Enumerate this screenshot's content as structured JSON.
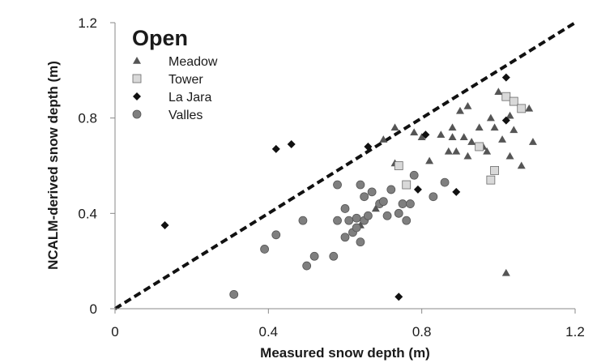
{
  "chart_data": {
    "type": "scatter",
    "title": "Open",
    "xlabel": "Measured snow depth (m)",
    "ylabel": "NCALM-derived snow depth (m)",
    "xlim": [
      0,
      1.2
    ],
    "ylim": [
      0,
      1.2
    ],
    "x_ticks": [
      "0",
      "0.4",
      "0.8",
      "1.2"
    ],
    "y_ticks": [
      "0",
      "0.4",
      "0.8",
      "1.2"
    ],
    "grid": false,
    "legend_position": "top-left",
    "one_to_one_line": true,
    "series": [
      {
        "name": "Meadow",
        "marker": "triangle",
        "color": "#555555",
        "points": [
          [
            0.7,
            0.71
          ],
          [
            0.73,
            0.76
          ],
          [
            0.78,
            0.74
          ],
          [
            0.8,
            0.72
          ],
          [
            0.82,
            0.62
          ],
          [
            0.85,
            0.73
          ],
          [
            0.87,
            0.66
          ],
          [
            0.88,
            0.76
          ],
          [
            0.88,
            0.72
          ],
          [
            0.89,
            0.66
          ],
          [
            0.9,
            0.83
          ],
          [
            0.91,
            0.72
          ],
          [
            0.92,
            0.85
          ],
          [
            0.92,
            0.64
          ],
          [
            0.93,
            0.7
          ],
          [
            0.95,
            0.76
          ],
          [
            0.96,
            0.68
          ],
          [
            0.97,
            0.66
          ],
          [
            0.98,
            0.8
          ],
          [
            0.99,
            0.76
          ],
          [
            1.0,
            0.91
          ],
          [
            1.01,
            0.71
          ],
          [
            1.02,
            0.15
          ],
          [
            1.03,
            0.64
          ],
          [
            1.03,
            0.81
          ],
          [
            1.04,
            0.75
          ],
          [
            1.06,
            0.6
          ],
          [
            1.08,
            0.84
          ],
          [
            1.09,
            0.7
          ],
          [
            0.73,
            0.61
          ],
          [
            0.64,
            0.35
          ],
          [
            0.68,
            0.42
          ]
        ]
      },
      {
        "name": "Tower",
        "marker": "square",
        "color": "#d9d9d9",
        "points": [
          [
            0.74,
            0.6
          ],
          [
            0.76,
            0.52
          ],
          [
            0.95,
            0.68
          ],
          [
            0.98,
            0.54
          ],
          [
            0.99,
            0.58
          ],
          [
            1.02,
            0.89
          ],
          [
            1.04,
            0.87
          ],
          [
            1.06,
            0.84
          ]
        ]
      },
      {
        "name": "La Jara",
        "marker": "diamond",
        "color": "#111111",
        "points": [
          [
            0.13,
            0.35
          ],
          [
            0.42,
            0.67
          ],
          [
            0.46,
            0.69
          ],
          [
            0.66,
            0.68
          ],
          [
            0.74,
            0.05
          ],
          [
            0.79,
            0.5
          ],
          [
            0.81,
            0.73
          ],
          [
            0.89,
            0.49
          ],
          [
            1.02,
            0.97
          ],
          [
            1.02,
            0.79
          ]
        ]
      },
      {
        "name": "Valles",
        "marker": "circle",
        "color": "#7f7f7f",
        "points": [
          [
            0.31,
            0.06
          ],
          [
            0.39,
            0.25
          ],
          [
            0.42,
            0.31
          ],
          [
            0.49,
            0.37
          ],
          [
            0.5,
            0.18
          ],
          [
            0.52,
            0.22
          ],
          [
            0.57,
            0.22
          ],
          [
            0.58,
            0.37
          ],
          [
            0.58,
            0.52
          ],
          [
            0.6,
            0.3
          ],
          [
            0.6,
            0.42
          ],
          [
            0.61,
            0.37
          ],
          [
            0.62,
            0.32
          ],
          [
            0.63,
            0.38
          ],
          [
            0.63,
            0.34
          ],
          [
            0.64,
            0.28
          ],
          [
            0.64,
            0.52
          ],
          [
            0.65,
            0.37
          ],
          [
            0.65,
            0.47
          ],
          [
            0.66,
            0.39
          ],
          [
            0.67,
            0.49
          ],
          [
            0.69,
            0.44
          ],
          [
            0.7,
            0.45
          ],
          [
            0.71,
            0.39
          ],
          [
            0.72,
            0.5
          ],
          [
            0.74,
            0.4
          ],
          [
            0.75,
            0.44
          ],
          [
            0.76,
            0.37
          ],
          [
            0.77,
            0.44
          ],
          [
            0.78,
            0.56
          ],
          [
            0.83,
            0.47
          ],
          [
            0.86,
            0.53
          ]
        ]
      }
    ]
  }
}
